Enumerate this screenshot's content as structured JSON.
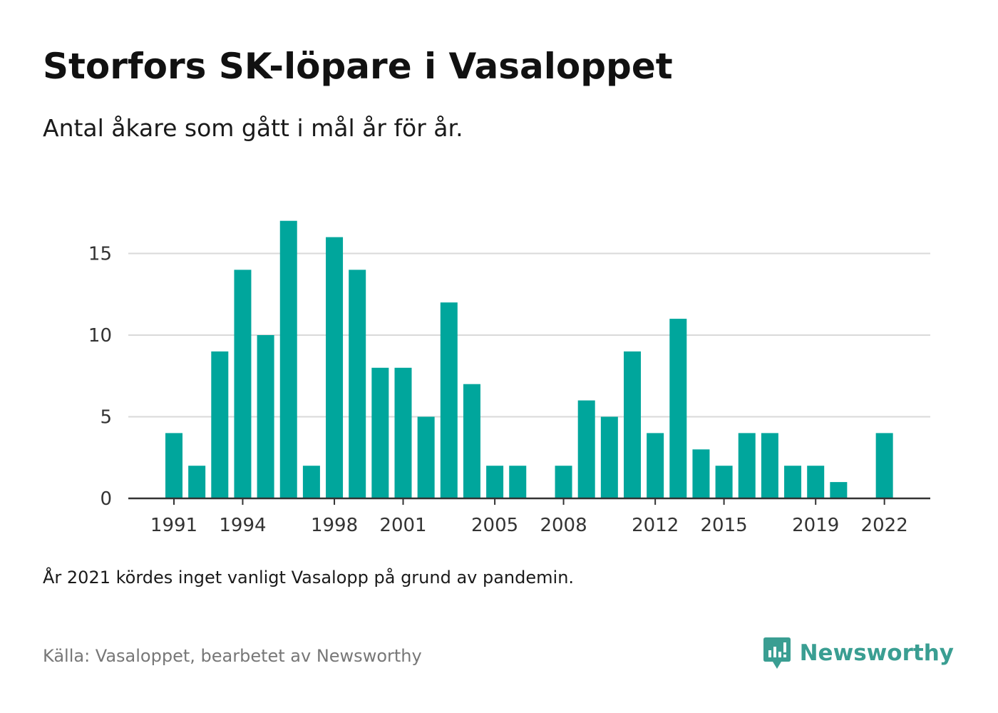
{
  "title": "Storfors SK-löpare i Vasaloppet",
  "subtitle": "Antal åkare som gått i mål år för år.",
  "note": "År 2021 kördes inget vanligt Vasalopp på grund av pandemin.",
  "source": "Källa: Vasaloppet, bearbetet av Newsworthy",
  "brand": {
    "name": "Newsworthy",
    "icon": "newsworthy-logo-icon",
    "color": "#3a9e92"
  },
  "chart_data": {
    "type": "bar",
    "title": "Storfors SK-löpare i Vasaloppet",
    "subtitle": "Antal åkare som gått i mål år för år.",
    "xlabel": "",
    "ylabel": "",
    "x": [
      1991,
      1992,
      1993,
      1994,
      1995,
      1996,
      1997,
      1998,
      1999,
      2000,
      2001,
      2002,
      2003,
      2004,
      2005,
      2006,
      2007,
      2008,
      2009,
      2010,
      2011,
      2012,
      2013,
      2014,
      2015,
      2016,
      2017,
      2018,
      2019,
      2020,
      2021,
      2022
    ],
    "values": [
      4,
      2,
      9,
      14,
      10,
      17,
      2,
      16,
      14,
      8,
      8,
      5,
      12,
      7,
      2,
      2,
      0,
      2,
      6,
      5,
      9,
      4,
      11,
      3,
      2,
      4,
      4,
      2,
      2,
      1,
      0,
      4
    ],
    "x_tick_labels": [
      "1991",
      "1994",
      "1998",
      "2001",
      "2005",
      "2008",
      "2012",
      "2015",
      "2019",
      "2022"
    ],
    "y_ticks": [
      0,
      5,
      10,
      15
    ],
    "ylim": [
      0,
      17
    ],
    "grid": true,
    "legend": "none",
    "bar_color": "#00a69c",
    "grid_color": "#d9d9d9",
    "axis_color": "#333333"
  }
}
